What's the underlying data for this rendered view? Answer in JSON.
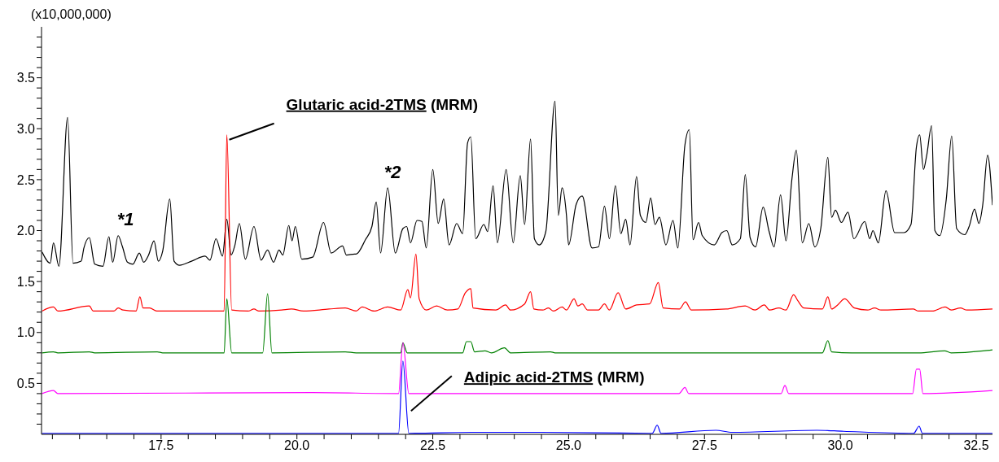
{
  "chart_data": {
    "type": "line",
    "ylabel": "(x10,000,000)",
    "marker": "none",
    "xlim": [
      15.3,
      32.8
    ],
    "ylim": [
      0,
      4.0
    ],
    "xticks": [
      {
        "value": 15.5,
        "label": null
      },
      {
        "value": 16,
        "label": null
      },
      {
        "value": 16.5,
        "label": null
      },
      {
        "value": 17,
        "label": null
      },
      17.5,
      {
        "value": 18,
        "label": null
      },
      {
        "value": 18.5,
        "label": null
      },
      {
        "value": 19,
        "label": null
      },
      {
        "value": 19.5,
        "label": null
      },
      {
        "value": 20,
        "label": "20.0"
      },
      {
        "value": 20.5,
        "label": null
      },
      {
        "value": 21,
        "label": null
      },
      {
        "value": 21.5,
        "label": null
      },
      {
        "value": 22,
        "label": null
      },
      22.5,
      {
        "value": 23,
        "label": null
      },
      {
        "value": 23.5,
        "label": null
      },
      {
        "value": 24,
        "label": null
      },
      {
        "value": 24.5,
        "label": null
      },
      {
        "value": 25,
        "label": "25.0"
      },
      {
        "value": 25.5,
        "label": null
      },
      {
        "value": 26,
        "label": null
      },
      {
        "value": 26.5,
        "label": null
      },
      {
        "value": 27,
        "label": null
      },
      27.5,
      {
        "value": 28,
        "label": null
      },
      {
        "value": 28.5,
        "label": null
      },
      {
        "value": 29,
        "label": null
      },
      {
        "value": 29.5,
        "label": null
      },
      {
        "value": 30,
        "label": "30.0"
      },
      {
        "value": 30.5,
        "label": null
      },
      {
        "value": 31,
        "label": null
      },
      {
        "value": 31.5,
        "label": null
      },
      {
        "value": 32,
        "label": null
      },
      32.5
    ],
    "yticks": [
      {
        "value": 0.1,
        "label": null
      },
      {
        "value": 0.2,
        "label": null
      },
      {
        "value": 0.3,
        "label": null
      },
      {
        "value": 0.4,
        "label": null
      },
      0.5,
      {
        "value": 0.6,
        "label": null
      },
      {
        "value": 0.7,
        "label": null
      },
      {
        "value": 0.8,
        "label": null
      },
      {
        "value": 0.9,
        "label": null
      },
      {
        "value": 1,
        "label": "1.0"
      },
      {
        "value": 1.1,
        "label": null
      },
      {
        "value": 1.2,
        "label": null
      },
      {
        "value": 1.3,
        "label": null
      },
      {
        "value": 1.4,
        "label": null
      },
      1.5,
      {
        "value": 1.6,
        "label": null
      },
      {
        "value": 1.7,
        "label": null
      },
      {
        "value": 1.8,
        "label": null
      },
      {
        "value": 1.9,
        "label": null
      },
      {
        "value": 2,
        "label": "2.0"
      },
      {
        "value": 2.1,
        "label": null
      },
      {
        "value": 2.2,
        "label": null
      },
      {
        "value": 2.3,
        "label": null
      },
      {
        "value": 2.4,
        "label": null
      },
      2.5,
      {
        "value": 2.6,
        "label": null
      },
      {
        "value": 2.7,
        "label": null
      },
      {
        "value": 2.8,
        "label": null
      },
      {
        "value": 2.9,
        "label": null
      },
      {
        "value": 3,
        "label": "3.0"
      },
      {
        "value": 3.1,
        "label": null
      },
      {
        "value": 3.2,
        "label": null
      },
      {
        "value": 3.3,
        "label": null
      },
      {
        "value": 3.4,
        "label": null
      },
      3.5,
      {
        "value": 3.6,
        "label": null
      },
      {
        "value": 3.7,
        "label": null
      },
      {
        "value": 3.8,
        "label": null
      },
      {
        "value": 3.9,
        "label": null
      }
    ],
    "annotations": [
      {
        "text": "Glutaric acid-2TMS (MRM)",
        "x": 18.71,
        "y": 2.94
      },
      {
        "text": "Adipic acid-2TMS (MRM)",
        "x": 22.1,
        "y": 0.23
      },
      {
        "text": "*1",
        "x": 16.71,
        "y": 1.95
      },
      {
        "text": "*2",
        "x": 21.67,
        "y": 2.42
      }
    ],
    "series": [
      {
        "color": "#000000",
        "x": [
          15.31,
          15.46,
          15.52,
          15.62,
          15.78,
          15.88,
          16.03,
          16.08,
          16.18,
          16.28,
          16.43,
          16.54,
          16.61,
          16.71,
          16.79,
          16.88,
          16.98,
          17.1,
          17.18,
          17.27,
          17.37,
          17.45,
          17.53,
          17.66,
          17.74,
          17.84,
          18.06,
          18.31,
          18.4,
          18.51,
          18.63,
          18.71,
          18.79,
          18.86,
          18.94,
          19.05,
          19.21,
          19.34,
          19.46,
          19.57,
          19.67,
          19.74,
          19.85,
          19.91,
          19.97,
          20.09,
          20.29,
          20.49,
          20.63,
          20.84,
          20.91,
          21.06,
          21.09,
          21.26,
          21.38,
          21.46,
          21.54,
          21.67,
          21.81,
          21.95,
          22.02,
          22.09,
          22.21,
          22.3,
          22.38,
          22.5,
          22.6,
          22.7,
          22.8,
          22.94,
          23.05,
          23.14,
          23.2,
          23.29,
          23.44,
          23.51,
          23.61,
          23.69,
          23.85,
          23.98,
          24.11,
          24.19,
          24.3,
          24.37,
          24.46,
          24.58,
          24.75,
          24.81,
          24.88,
          24.96,
          25.0,
          25.14,
          25.25,
          25.43,
          25.55,
          25.66,
          25.75,
          25.86,
          25.96,
          26.05,
          26.13,
          26.25,
          26.32,
          26.42,
          26.51,
          26.59,
          26.67,
          26.79,
          26.92,
          27.01,
          27.14,
          27.22,
          27.29,
          27.39,
          27.46,
          27.68,
          27.82,
          27.91,
          28.01,
          28.16,
          28.25,
          28.34,
          28.44,
          28.58,
          28.69,
          28.78,
          28.9,
          29.0,
          29.11,
          29.19,
          29.3,
          29.42,
          29.53,
          29.64,
          29.77,
          29.84,
          29.91,
          30.02,
          30.14,
          30.25,
          30.45,
          30.54,
          30.6,
          30.7,
          30.84,
          31.0,
          31.17,
          31.3,
          31.4,
          31.46,
          31.53,
          31.59,
          31.68,
          31.74,
          31.83,
          31.95,
          32.05,
          32.14,
          32.29,
          32.37,
          32.47,
          32.55,
          32.62,
          32.71,
          32.8
        ],
        "values": [
          1.79,
          1.68,
          1.88,
          1.65,
          3.11,
          1.68,
          1.7,
          1.83,
          1.93,
          1.67,
          1.65,
          1.94,
          1.69,
          1.95,
          1.84,
          1.69,
          1.67,
          1.78,
          1.69,
          1.76,
          1.9,
          1.7,
          1.8,
          2.31,
          1.7,
          1.66,
          1.7,
          1.75,
          1.71,
          1.92,
          1.75,
          2.11,
          1.76,
          1.86,
          2.07,
          1.72,
          2.04,
          1.71,
          1.81,
          1.69,
          1.81,
          1.76,
          2.05,
          1.9,
          2.04,
          1.72,
          1.74,
          2.08,
          1.78,
          1.85,
          1.76,
          1.77,
          1.77,
          1.91,
          2.04,
          2.28,
          1.78,
          2.42,
          1.78,
          2.02,
          2.04,
          1.88,
          2.1,
          2.09,
          1.83,
          2.6,
          2.07,
          2.31,
          1.86,
          2.07,
          1.97,
          2.86,
          2.92,
          1.92,
          2.06,
          1.99,
          2.44,
          1.88,
          2.6,
          1.88,
          2.54,
          2.06,
          2.9,
          1.92,
          1.86,
          1.99,
          3.27,
          2.15,
          2.42,
          2.15,
          1.86,
          2.26,
          2.34,
          1.83,
          1.84,
          2.24,
          1.92,
          2.44,
          1.97,
          2.11,
          1.86,
          2.53,
          2.15,
          2.08,
          2.32,
          2.06,
          2.13,
          1.86,
          2.1,
          1.83,
          2.84,
          2.99,
          1.91,
          2.08,
          1.95,
          1.86,
          1.98,
          2.0,
          1.86,
          1.92,
          2.55,
          1.93,
          1.84,
          2.23,
          1.99,
          1.84,
          2.35,
          1.9,
          2.51,
          2.79,
          1.88,
          2.07,
          1.84,
          2.02,
          2.72,
          2.13,
          2.2,
          2.08,
          2.18,
          1.92,
          2.09,
          1.92,
          2.0,
          1.88,
          2.39,
          1.98,
          1.98,
          2.06,
          2.82,
          2.94,
          2.6,
          2.74,
          3.03,
          2.0,
          1.95,
          2.31,
          2.93,
          2.02,
          1.96,
          2.04,
          2.21,
          2.07,
          2.25,
          2.74,
          2.25
        ]
      },
      {
        "color": "#ff0000",
        "x": [
          15.31,
          15.52,
          15.6,
          16.18,
          16.25,
          16.63,
          16.71,
          16.8,
          17.04,
          17.11,
          17.17,
          17.29,
          17.42,
          18.66,
          18.71,
          18.8,
          19.1,
          19.21,
          19.3,
          19.72,
          19.9,
          20.12,
          20.59,
          20.89,
          21.09,
          21.2,
          21.42,
          21.67,
          21.91,
          22.04,
          22.09,
          22.19,
          22.25,
          22.38,
          22.57,
          22.77,
          22.96,
          23.1,
          23.2,
          23.24,
          23.66,
          23.84,
          23.93,
          24.19,
          24.3,
          24.36,
          24.52,
          24.63,
          24.72,
          24.88,
          24.96,
          25.1,
          25.17,
          25.25,
          25.35,
          25.55,
          25.66,
          25.75,
          25.91,
          26.05,
          26.25,
          26.49,
          26.65,
          26.74,
          27.04,
          27.15,
          27.26,
          27.9,
          28.25,
          28.43,
          28.6,
          28.7,
          28.87,
          29.0,
          29.14,
          29.22,
          29.33,
          29.67,
          29.77,
          29.84,
          29.95,
          30.08,
          30.26,
          30.5,
          30.63,
          30.75,
          31.34,
          31.44,
          31.69,
          31.93,
          32.04,
          32.21,
          32.33,
          32.8
        ],
        "values": [
          1.21,
          1.25,
          1.21,
          1.26,
          1.21,
          1.21,
          1.24,
          1.22,
          1.21,
          1.35,
          1.24,
          1.24,
          1.21,
          1.21,
          2.94,
          1.22,
          1.21,
          1.23,
          1.21,
          1.22,
          1.23,
          1.21,
          1.23,
          1.24,
          1.21,
          1.25,
          1.21,
          1.25,
          1.22,
          1.42,
          1.34,
          1.77,
          1.33,
          1.22,
          1.26,
          1.22,
          1.23,
          1.39,
          1.43,
          1.24,
          1.22,
          1.27,
          1.22,
          1.28,
          1.4,
          1.23,
          1.22,
          1.24,
          1.21,
          1.25,
          1.22,
          1.33,
          1.26,
          1.28,
          1.22,
          1.22,
          1.28,
          1.22,
          1.39,
          1.23,
          1.27,
          1.28,
          1.49,
          1.24,
          1.23,
          1.3,
          1.22,
          1.23,
          1.26,
          1.22,
          1.27,
          1.22,
          1.24,
          1.22,
          1.37,
          1.31,
          1.24,
          1.23,
          1.35,
          1.23,
          1.27,
          1.33,
          1.24,
          1.22,
          1.24,
          1.22,
          1.23,
          1.21,
          1.21,
          1.25,
          1.22,
          1.24,
          1.22,
          1.23
        ]
      },
      {
        "color": "#008000",
        "x": [
          15.31,
          15.52,
          15.6,
          16.18,
          16.28,
          17.43,
          17.53,
          18.66,
          18.71,
          18.8,
          19.37,
          19.46,
          19.54,
          20.89,
          21.09,
          21.91,
          21.95,
          22.03,
          23.05,
          23.12,
          23.2,
          23.27,
          23.46,
          23.58,
          23.82,
          23.93,
          24.67,
          24.75,
          27.04,
          29.67,
          29.77,
          29.84,
          30.21,
          31.44,
          31.92,
          32.04,
          32.63,
          32.8
        ],
        "values": [
          0.8,
          0.81,
          0.8,
          0.81,
          0.8,
          0.81,
          0.8,
          0.8,
          1.33,
          0.8,
          0.8,
          1.38,
          0.8,
          0.81,
          0.8,
          0.8,
          0.9,
          0.8,
          0.8,
          0.91,
          0.91,
          0.81,
          0.82,
          0.8,
          0.85,
          0.8,
          0.81,
          0.8,
          0.8,
          0.8,
          0.92,
          0.81,
          0.8,
          0.8,
          0.82,
          0.8,
          0.82,
          0.83
        ]
      },
      {
        "color": "#ff00ff",
        "x": [
          15.31,
          15.52,
          15.6,
          20.29,
          21.87,
          21.95,
          22.06,
          27.03,
          27.14,
          27.21,
          28.91,
          28.98,
          29.05,
          31.33,
          31.4,
          31.46,
          31.52,
          32.8
        ],
        "values": [
          0.4,
          0.43,
          0.4,
          0.41,
          0.4,
          0.9,
          0.4,
          0.4,
          0.46,
          0.4,
          0.4,
          0.48,
          0.4,
          0.4,
          0.64,
          0.64,
          0.4,
          0.43
        ]
      },
      {
        "color": "#0000ff",
        "x": [
          15.31,
          21.87,
          21.95,
          22.06,
          23.22,
          24.45,
          26.54,
          26.63,
          26.7,
          27.71,
          28.01,
          29.57,
          30.06,
          31.35,
          31.45,
          31.51,
          32.8
        ],
        "values": [
          0.01,
          0.01,
          0.72,
          0.01,
          0.02,
          0.02,
          0.01,
          0.09,
          0.01,
          0.04,
          0.02,
          0.04,
          0.03,
          0.01,
          0.08,
          0.01,
          0.01
        ]
      }
    ]
  }
}
